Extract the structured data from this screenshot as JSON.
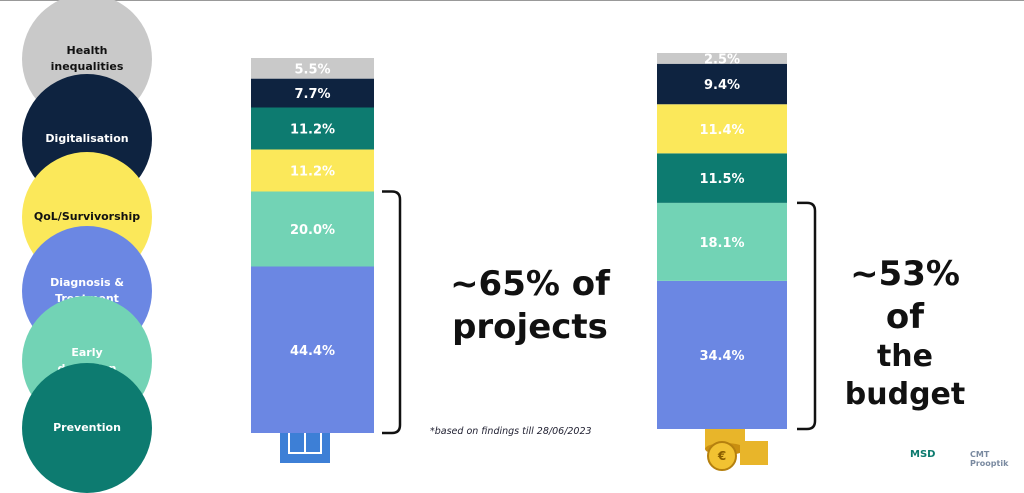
{
  "legend": [
    {
      "label": "Health inequalities",
      "color": "#c9c9c9",
      "text_color": "#111111"
    },
    {
      "label": "Digitalisation",
      "color": "#0e2340",
      "text_color": "#ffffff"
    },
    {
      "label": "QoL/Survivorship",
      "color": "#fbe85a",
      "text_color": "#111111"
    },
    {
      "label": "Diagnosis & Treatment",
      "color": "#6b87e3",
      "text_color": "#ffffff"
    },
    {
      "label": "Early detection",
      "color": "#72d3b5",
      "text_color": "#ffffff"
    },
    {
      "label": "Prevention",
      "color": "#0d7b70",
      "text_color": "#ffffff"
    }
  ],
  "chart_data": [
    {
      "type": "stacked-bar",
      "annotation": [
        "~65% of",
        "projects"
      ],
      "series": [
        {
          "name": "Diagnosis & Treatment",
          "color": "#6b87e3",
          "values": [
            44.4
          ],
          "value_labels": [
            "44.4%"
          ]
        },
        {
          "name": "Early detection",
          "color": "#72d3b5",
          "values": [
            20.0
          ],
          "value_labels": [
            "20.0%"
          ]
        },
        {
          "name": "QoL/Survivorship",
          "color": "#fbe85a",
          "values": [
            11.2
          ],
          "value_labels": [
            "11.2%"
          ]
        },
        {
          "name": "Prevention",
          "color": "#0d7b70",
          "values": [
            11.2
          ],
          "value_labels": [
            "11.2%"
          ]
        },
        {
          "name": "Digitalisation",
          "color": "#0e2340",
          "values": [
            7.7
          ],
          "value_labels": [
            "7.7%"
          ]
        },
        {
          "name": "Health inequalities",
          "color": "#c9c9c9",
          "values": [
            5.5
          ],
          "value_labels": [
            "5.5%"
          ]
        }
      ]
    },
    {
      "type": "stacked-bar",
      "annotation": [
        "~53% of",
        "the",
        "budget"
      ],
      "series": [
        {
          "name": "Diagnosis & Treatment",
          "color": "#6b87e3",
          "values": [
            34.4
          ],
          "value_labels": [
            "34.4%"
          ]
        },
        {
          "name": "Early detection",
          "color": "#72d3b5",
          "values": [
            18.1
          ],
          "value_labels": [
            "18.1%"
          ]
        },
        {
          "name": "Prevention",
          "color": "#0d7b70",
          "values": [
            11.5
          ],
          "value_labels": [
            "11.5%"
          ]
        },
        {
          "name": "QoL/Survivorship",
          "color": "#fbe85a",
          "values": [
            11.4
          ],
          "value_labels": [
            "11.4%"
          ]
        },
        {
          "name": "Digitalisation",
          "color": "#0e2340",
          "values": [
            9.4
          ],
          "value_labels": [
            "9.4%"
          ]
        },
        {
          "name": "Health inequalities",
          "color": "#c9c9c9",
          "values": [
            2.5
          ],
          "value_labels": [
            "2.5%"
          ]
        }
      ]
    }
  ],
  "footnote": "*based on findings till 28/06/2023",
  "logos": [
    "MSD",
    "CMT Prooptik"
  ]
}
